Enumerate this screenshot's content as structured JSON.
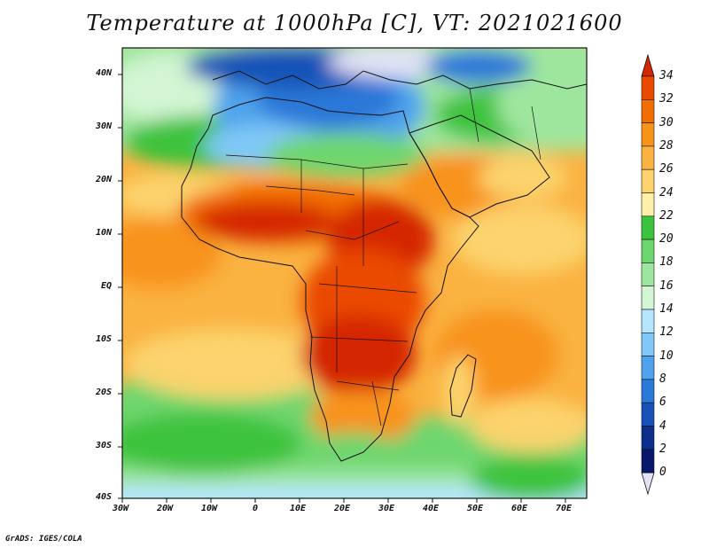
{
  "title": "Temperature at 1000hPa [C], VT: 2021021600",
  "credit": "GrADS: IGES/COLA",
  "map": {
    "projection": "lat-lon",
    "lon_range": [
      -30,
      75
    ],
    "lat_range": [
      -40,
      45
    ],
    "x_ticks": [
      "30W",
      "20W",
      "10W",
      "0",
      "10E",
      "20E",
      "30E",
      "40E",
      "50E",
      "60E",
      "70E"
    ],
    "y_ticks": [
      "40N",
      "30N",
      "20N",
      "10N",
      "EQ",
      "10S",
      "20S",
      "30S",
      "40S"
    ],
    "variable": "Temperature",
    "units": "C",
    "level": "1000hPa",
    "valid_time": "2021021600"
  },
  "colorbar": {
    "labels": [
      "34",
      "32",
      "30",
      "28",
      "26",
      "24",
      "22",
      "20",
      "18",
      "16",
      "14",
      "12",
      "10",
      "8",
      "6",
      "4",
      "2",
      "0"
    ],
    "colors": [
      "#d42800",
      "#ea4a00",
      "#f26e00",
      "#f8931a",
      "#fab241",
      "#fcd36d",
      "#fef0a8",
      "#3cc33c",
      "#6ed66e",
      "#9ee69e",
      "#d3f5d3",
      "#b5e6ff",
      "#7fc8f8",
      "#4fa3ec",
      "#2a78d8",
      "#1752b8",
      "#0c2f8c",
      "#08176a",
      "#e2e2f6"
    ]
  }
}
